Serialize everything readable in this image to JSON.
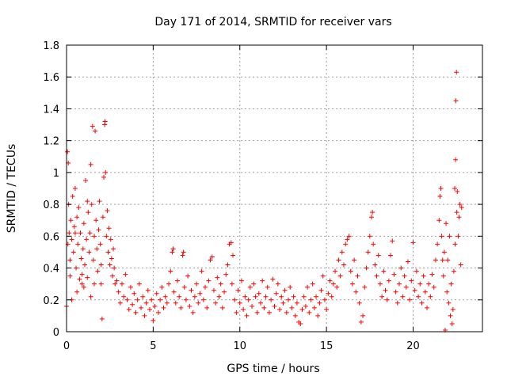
{
  "chart_data": {
    "type": "scatter",
    "title": "Day 171 of 2014, SRMTID for receiver vars",
    "xlabel": "GPS time / hours",
    "ylabel": "SRMTID / TECUs",
    "xlim": [
      0,
      24
    ],
    "ylim": [
      0,
      1.8
    ],
    "xticks": [
      0,
      5,
      10,
      15,
      20
    ],
    "yticks": [
      0,
      0.2,
      0.4,
      0.6,
      0.8,
      1,
      1.2,
      1.4,
      1.6,
      1.8
    ],
    "xtick_labels": [
      "0",
      "5",
      "10",
      "15",
      "20"
    ],
    "ytick_labels": [
      "0",
      "0.2",
      "0.4",
      "0.6",
      "0.8",
      "1",
      "1.2",
      "1.4",
      "1.6",
      "1.8"
    ],
    "grid": true,
    "marker": "+",
    "color": "#ff0000",
    "series": [
      {
        "name": "SRMTID",
        "points": [
          [
            0.0,
            0.16
          ],
          [
            0.05,
            1.13
          ],
          [
            0.08,
            0.55
          ],
          [
            0.1,
            1.06
          ],
          [
            0.12,
            0.8
          ],
          [
            0.15,
            0.62
          ],
          [
            0.2,
            0.45
          ],
          [
            0.25,
            0.7
          ],
          [
            0.3,
            0.58
          ],
          [
            0.35,
            0.85
          ],
          [
            0.4,
            0.5
          ],
          [
            0.45,
            0.66
          ],
          [
            0.5,
            0.9
          ],
          [
            0.55,
            0.4
          ],
          [
            0.6,
            0.72
          ],
          [
            0.65,
            0.55
          ],
          [
            0.7,
            0.78
          ],
          [
            0.75,
            0.33
          ],
          [
            0.8,
            0.62
          ],
          [
            0.85,
            0.46
          ],
          [
            0.9,
            0.36
          ],
          [
            0.95,
            0.52
          ],
          [
            1.0,
            0.68
          ],
          [
            1.05,
            0.42
          ],
          [
            1.1,
            0.95
          ],
          [
            1.15,
            0.58
          ],
          [
            1.2,
            0.34
          ],
          [
            1.25,
            0.75
          ],
          [
            1.3,
            0.5
          ],
          [
            1.35,
            0.62
          ],
          [
            1.4,
            1.05
          ],
          [
            1.45,
            0.8
          ],
          [
            1.5,
            1.29
          ],
          [
            1.55,
            0.45
          ],
          [
            1.6,
            0.6
          ],
          [
            1.65,
            1.26
          ],
          [
            1.7,
            0.7
          ],
          [
            1.75,
            0.52
          ],
          [
            1.8,
            0.38
          ],
          [
            1.85,
            0.64
          ],
          [
            1.9,
            0.82
          ],
          [
            1.95,
            0.55
          ],
          [
            2.0,
            0.3
          ],
          [
            2.05,
            0.08
          ],
          [
            2.1,
            0.72
          ],
          [
            2.15,
            0.97
          ],
          [
            2.2,
            1.3
          ],
          [
            2.22,
            1.32
          ],
          [
            2.25,
            1.0
          ],
          [
            2.3,
            0.6
          ],
          [
            2.35,
            0.76
          ],
          [
            2.4,
            0.5
          ],
          [
            2.45,
            0.65
          ],
          [
            2.5,
            0.42
          ],
          [
            2.55,
            0.58
          ],
          [
            2.6,
            0.46
          ],
          [
            2.65,
            0.35
          ],
          [
            2.7,
            0.52
          ],
          [
            2.75,
            0.4
          ],
          [
            2.8,
            0.3
          ],
          [
            0.3,
            0.2
          ],
          [
            0.6,
            0.25
          ],
          [
            1.0,
            0.28
          ],
          [
            1.4,
            0.22
          ],
          [
            0.2,
            0.35
          ],
          [
            0.9,
            0.3
          ],
          [
            1.6,
            0.3
          ],
          [
            2.0,
            0.42
          ],
          [
            0.5,
            0.62
          ],
          [
            1.2,
            0.82
          ],
          [
            2.9,
            0.32
          ],
          [
            3.0,
            0.25
          ],
          [
            3.1,
            0.18
          ],
          [
            3.2,
            0.3
          ],
          [
            3.3,
            0.22
          ],
          [
            3.4,
            0.36
          ],
          [
            3.5,
            0.2
          ],
          [
            3.6,
            0.14
          ],
          [
            3.7,
            0.28
          ],
          [
            3.8,
            0.17
          ],
          [
            3.9,
            0.24
          ],
          [
            4.0,
            0.12
          ],
          [
            4.1,
            0.2
          ],
          [
            4.2,
            0.3
          ],
          [
            4.3,
            0.15
          ],
          [
            4.4,
            0.22
          ],
          [
            4.5,
            0.1
          ],
          [
            4.6,
            0.18
          ],
          [
            4.7,
            0.26
          ],
          [
            4.8,
            0.14
          ],
          [
            4.9,
            0.2
          ],
          [
            5.0,
            0.07
          ],
          [
            5.1,
            0.16
          ],
          [
            5.2,
            0.24
          ],
          [
            5.3,
            0.12
          ],
          [
            5.4,
            0.2
          ],
          [
            5.5,
            0.28
          ],
          [
            5.6,
            0.15
          ],
          [
            5.7,
            0.22
          ],
          [
            5.8,
            0.18
          ],
          [
            5.9,
            0.3
          ],
          [
            6.0,
            0.38
          ],
          [
            6.1,
            0.5
          ],
          [
            6.15,
            0.52
          ],
          [
            6.2,
            0.25
          ],
          [
            6.3,
            0.18
          ],
          [
            6.4,
            0.32
          ],
          [
            6.5,
            0.22
          ],
          [
            6.6,
            0.15
          ],
          [
            6.7,
            0.48
          ],
          [
            6.75,
            0.5
          ],
          [
            6.8,
            0.28
          ],
          [
            6.9,
            0.2
          ],
          [
            7.0,
            0.35
          ],
          [
            7.1,
            0.16
          ],
          [
            7.2,
            0.26
          ],
          [
            7.3,
            0.12
          ],
          [
            7.4,
            0.22
          ],
          [
            7.5,
            0.3
          ],
          [
            7.6,
            0.18
          ],
          [
            7.7,
            0.24
          ],
          [
            7.8,
            0.38
          ],
          [
            7.9,
            0.2
          ],
          [
            8.0,
            0.28
          ],
          [
            8.1,
            0.15
          ],
          [
            8.2,
            0.32
          ],
          [
            8.3,
            0.45
          ],
          [
            8.4,
            0.47
          ],
          [
            8.5,
            0.26
          ],
          [
            8.6,
            0.18
          ],
          [
            8.7,
            0.34
          ],
          [
            8.8,
            0.22
          ],
          [
            8.9,
            0.3
          ],
          [
            9.0,
            0.15
          ],
          [
            9.1,
            0.25
          ],
          [
            9.2,
            0.36
          ],
          [
            9.3,
            0.42
          ],
          [
            9.4,
            0.55
          ],
          [
            9.5,
            0.56
          ],
          [
            9.55,
            0.3
          ],
          [
            9.6,
            0.48
          ],
          [
            9.7,
            0.2
          ],
          [
            9.8,
            0.12
          ],
          [
            9.9,
            0.26
          ],
          [
            10.0,
            0.18
          ],
          [
            10.1,
            0.32
          ],
          [
            10.2,
            0.14
          ],
          [
            10.3,
            0.22
          ],
          [
            10.4,
            0.1
          ],
          [
            10.5,
            0.2
          ],
          [
            10.6,
            0.28
          ],
          [
            10.7,
            0.16
          ],
          [
            10.8,
            0.3
          ],
          [
            10.9,
            0.22
          ],
          [
            11.0,
            0.12
          ],
          [
            11.1,
            0.24
          ],
          [
            11.2,
            0.18
          ],
          [
            11.3,
            0.32
          ],
          [
            11.4,
            0.15
          ],
          [
            11.5,
            0.22
          ],
          [
            11.6,
            0.28
          ],
          [
            11.7,
            0.12
          ],
          [
            11.8,
            0.2
          ],
          [
            11.9,
            0.33
          ],
          [
            12.0,
            0.16
          ],
          [
            12.1,
            0.24
          ],
          [
            12.2,
            0.3
          ],
          [
            12.3,
            0.14
          ],
          [
            12.4,
            0.22
          ],
          [
            12.5,
            0.18
          ],
          [
            12.6,
            0.26
          ],
          [
            12.7,
            0.12
          ],
          [
            12.8,
            0.2
          ],
          [
            12.9,
            0.28
          ],
          [
            13.0,
            0.15
          ],
          [
            13.1,
            0.22
          ],
          [
            13.2,
            0.1
          ],
          [
            13.3,
            0.18
          ],
          [
            13.4,
            0.06
          ],
          [
            13.5,
            0.05
          ],
          [
            13.6,
            0.14
          ],
          [
            13.7,
            0.22
          ],
          [
            13.8,
            0.16
          ],
          [
            13.9,
            0.28
          ],
          [
            14.0,
            0.12
          ],
          [
            14.1,
            0.2
          ],
          [
            14.2,
            0.3
          ],
          [
            14.3,
            0.15
          ],
          [
            14.4,
            0.22
          ],
          [
            14.5,
            0.1
          ],
          [
            14.6,
            0.18
          ],
          [
            14.7,
            0.26
          ],
          [
            14.8,
            0.35
          ],
          [
            14.9,
            0.2
          ],
          [
            15.0,
            0.14
          ],
          [
            15.1,
            0.24
          ],
          [
            15.2,
            0.32
          ],
          [
            15.3,
            0.22
          ],
          [
            15.4,
            0.3
          ],
          [
            15.5,
            0.38
          ],
          [
            15.6,
            0.28
          ],
          [
            15.7,
            0.45
          ],
          [
            15.8,
            0.35
          ],
          [
            15.9,
            0.5
          ],
          [
            16.0,
            0.42
          ],
          [
            16.1,
            0.55
          ],
          [
            16.2,
            0.58
          ],
          [
            16.3,
            0.6
          ],
          [
            16.4,
            0.38
          ],
          [
            16.5,
            0.3
          ],
          [
            16.6,
            0.45
          ],
          [
            16.7,
            0.25
          ],
          [
            16.8,
            0.35
          ],
          [
            16.9,
            0.18
          ],
          [
            17.0,
            0.06
          ],
          [
            17.1,
            0.1
          ],
          [
            17.2,
            0.28
          ],
          [
            17.3,
            0.4
          ],
          [
            17.4,
            0.5
          ],
          [
            17.5,
            0.6
          ],
          [
            17.6,
            0.72
          ],
          [
            17.65,
            0.75
          ],
          [
            17.7,
            0.55
          ],
          [
            17.8,
            0.42
          ],
          [
            17.9,
            0.35
          ],
          [
            18.0,
            0.48
          ],
          [
            18.1,
            0.3
          ],
          [
            18.2,
            0.22
          ],
          [
            18.3,
            0.38
          ],
          [
            18.4,
            0.26
          ],
          [
            18.5,
            0.2
          ],
          [
            18.6,
            0.32
          ],
          [
            18.7,
            0.48
          ],
          [
            18.8,
            0.57
          ],
          [
            18.9,
            0.36
          ],
          [
            19.0,
            0.25
          ],
          [
            19.1,
            0.18
          ],
          [
            19.2,
            0.3
          ],
          [
            19.3,
            0.4
          ],
          [
            19.4,
            0.22
          ],
          [
            19.5,
            0.35
          ],
          [
            19.6,
            0.28
          ],
          [
            19.7,
            0.44
          ],
          [
            19.8,
            0.2
          ],
          [
            19.9,
            0.32
          ],
          [
            20.0,
            0.56
          ],
          [
            20.1,
            0.26
          ],
          [
            20.2,
            0.38
          ],
          [
            20.3,
            0.22
          ],
          [
            20.4,
            0.3
          ],
          [
            20.5,
            0.18
          ],
          [
            20.6,
            0.35
          ],
          [
            20.7,
            0.25
          ],
          [
            20.8,
            0.15
          ],
          [
            20.9,
            0.3
          ],
          [
            21.0,
            0.22
          ],
          [
            21.1,
            0.36
          ],
          [
            21.2,
            0.28
          ],
          [
            21.3,
            0.45
          ],
          [
            21.4,
            0.55
          ],
          [
            21.5,
            0.7
          ],
          [
            21.55,
            0.85
          ],
          [
            21.6,
            0.9
          ],
          [
            21.65,
            0.6
          ],
          [
            21.7,
            0.45
          ],
          [
            21.75,
            0.35
          ],
          [
            21.8,
            0.5
          ],
          [
            21.85,
            0.01
          ],
          [
            21.9,
            0.68
          ],
          [
            21.95,
            0.25
          ],
          [
            22.0,
            0.45
          ],
          [
            22.05,
            0.18
          ],
          [
            22.1,
            0.6
          ],
          [
            22.15,
            0.1
          ],
          [
            22.2,
            0.3
          ],
          [
            22.25,
            0.05
          ],
          [
            22.3,
            0.14
          ],
          [
            22.35,
            0.38
          ],
          [
            22.4,
            0.9
          ],
          [
            22.42,
            0.55
          ],
          [
            22.45,
            1.08
          ],
          [
            22.47,
            1.45
          ],
          [
            22.5,
            1.63
          ],
          [
            22.52,
            0.75
          ],
          [
            22.55,
            0.88
          ],
          [
            22.6,
            0.6
          ],
          [
            22.65,
            0.72
          ],
          [
            22.7,
            0.8
          ],
          [
            22.75,
            0.42
          ],
          [
            22.8,
            0.78
          ]
        ]
      }
    ]
  }
}
